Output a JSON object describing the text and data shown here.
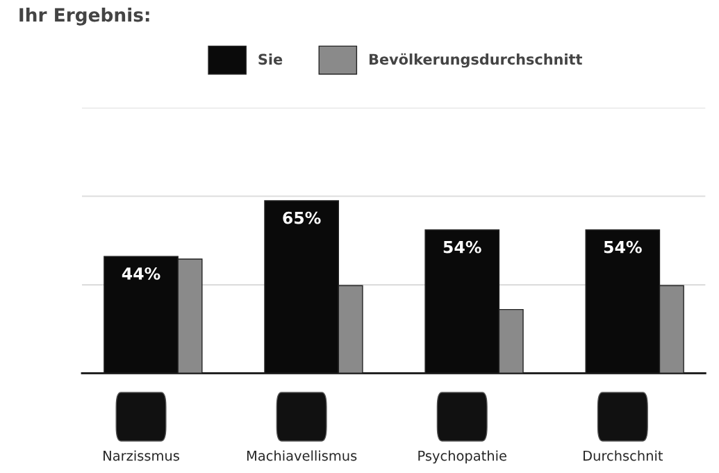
{
  "chart_data": {
    "type": "bar",
    "title": "Ihr Ergebnis:",
    "categories": [
      "Narzissmus",
      "Machiavellismus",
      "Psychopathie",
      "Durchschnit"
    ],
    "series": [
      {
        "name": "Sie",
        "color": "#0a0a0a",
        "values": [
          44,
          65,
          54,
          54
        ],
        "value_labels": [
          "44%",
          "65%",
          "54%",
          "54%"
        ]
      },
      {
        "name": "Bevölkerungsdurchschnitt",
        "color": "#8a8a8a",
        "values": [
          43,
          33,
          24,
          33
        ]
      }
    ],
    "ylim": [
      0,
      100
    ],
    "yticks": [
      {
        "value": 0,
        "label": null
      },
      {
        "value": 33.3,
        "label": null
      },
      {
        "value": 66.7,
        "label": null
      },
      {
        "value": 100,
        "label": null
      }
    ],
    "grid": "y",
    "legend": "top"
  }
}
